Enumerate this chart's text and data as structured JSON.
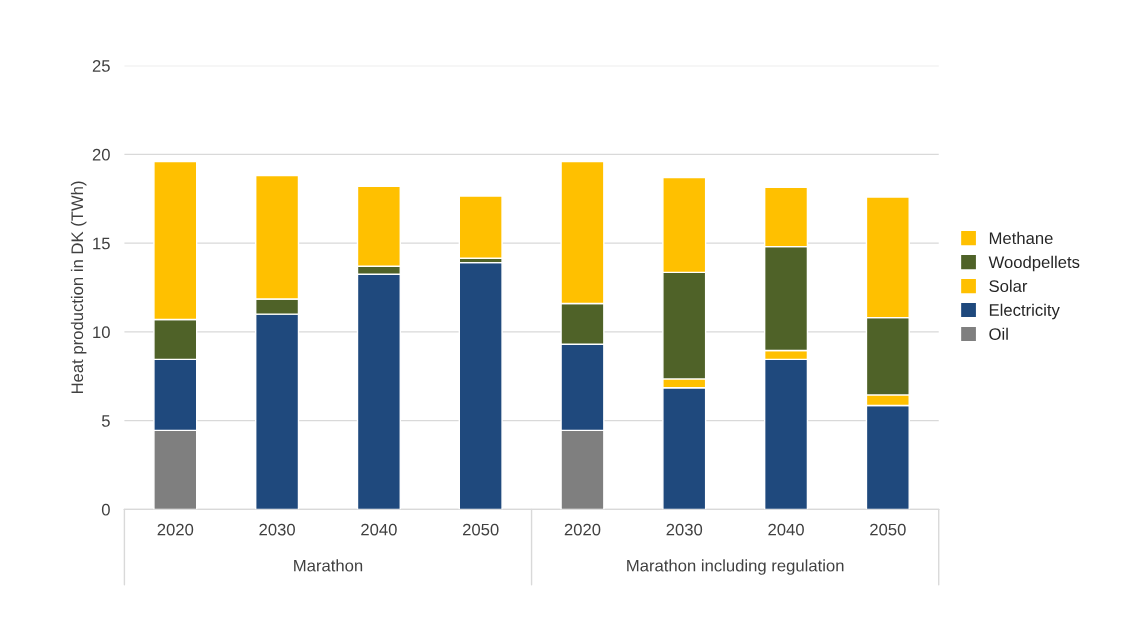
{
  "chart_data": {
    "type": "bar",
    "stacked": true,
    "ylabel": "Heat production in DK (TWh)",
    "categories": [
      "2020",
      "2030",
      "2040",
      "2050",
      "2020",
      "2030",
      "2040",
      "2050"
    ],
    "annotations": [
      "Marathon",
      "Marathon including regulation"
    ],
    "series": [
      {
        "name": "Oil",
        "color": "#7f7f7f",
        "values": [
          4.45,
          null,
          null,
          null,
          4.45,
          null,
          null,
          null
        ]
      },
      {
        "name": "Electricity",
        "color": "#1f497d",
        "values": [
          4.0,
          11.0,
          13.25,
          13.9,
          4.85,
          6.85,
          8.45,
          5.85
        ]
      },
      {
        "name": "Solar",
        "color": "#ffc000",
        "values": [
          null,
          null,
          null,
          null,
          null,
          0.5,
          0.5,
          0.6
        ]
      },
      {
        "name": "Woodpellets",
        "color": "#4f6228",
        "values": [
          2.25,
          0.85,
          0.45,
          0.25,
          2.3,
          6.0,
          5.85,
          4.35
        ]
      },
      {
        "name": "Methane",
        "color": "#ffc000",
        "values": [
          8.9,
          6.95,
          4.5,
          3.5,
          8.0,
          5.35,
          3.35,
          6.8
        ]
      }
    ],
    "ylim": [
      0,
      25
    ],
    "yticks": [
      0,
      5,
      10,
      15,
      20,
      25
    ],
    "grid": "y",
    "legend": "right"
  }
}
